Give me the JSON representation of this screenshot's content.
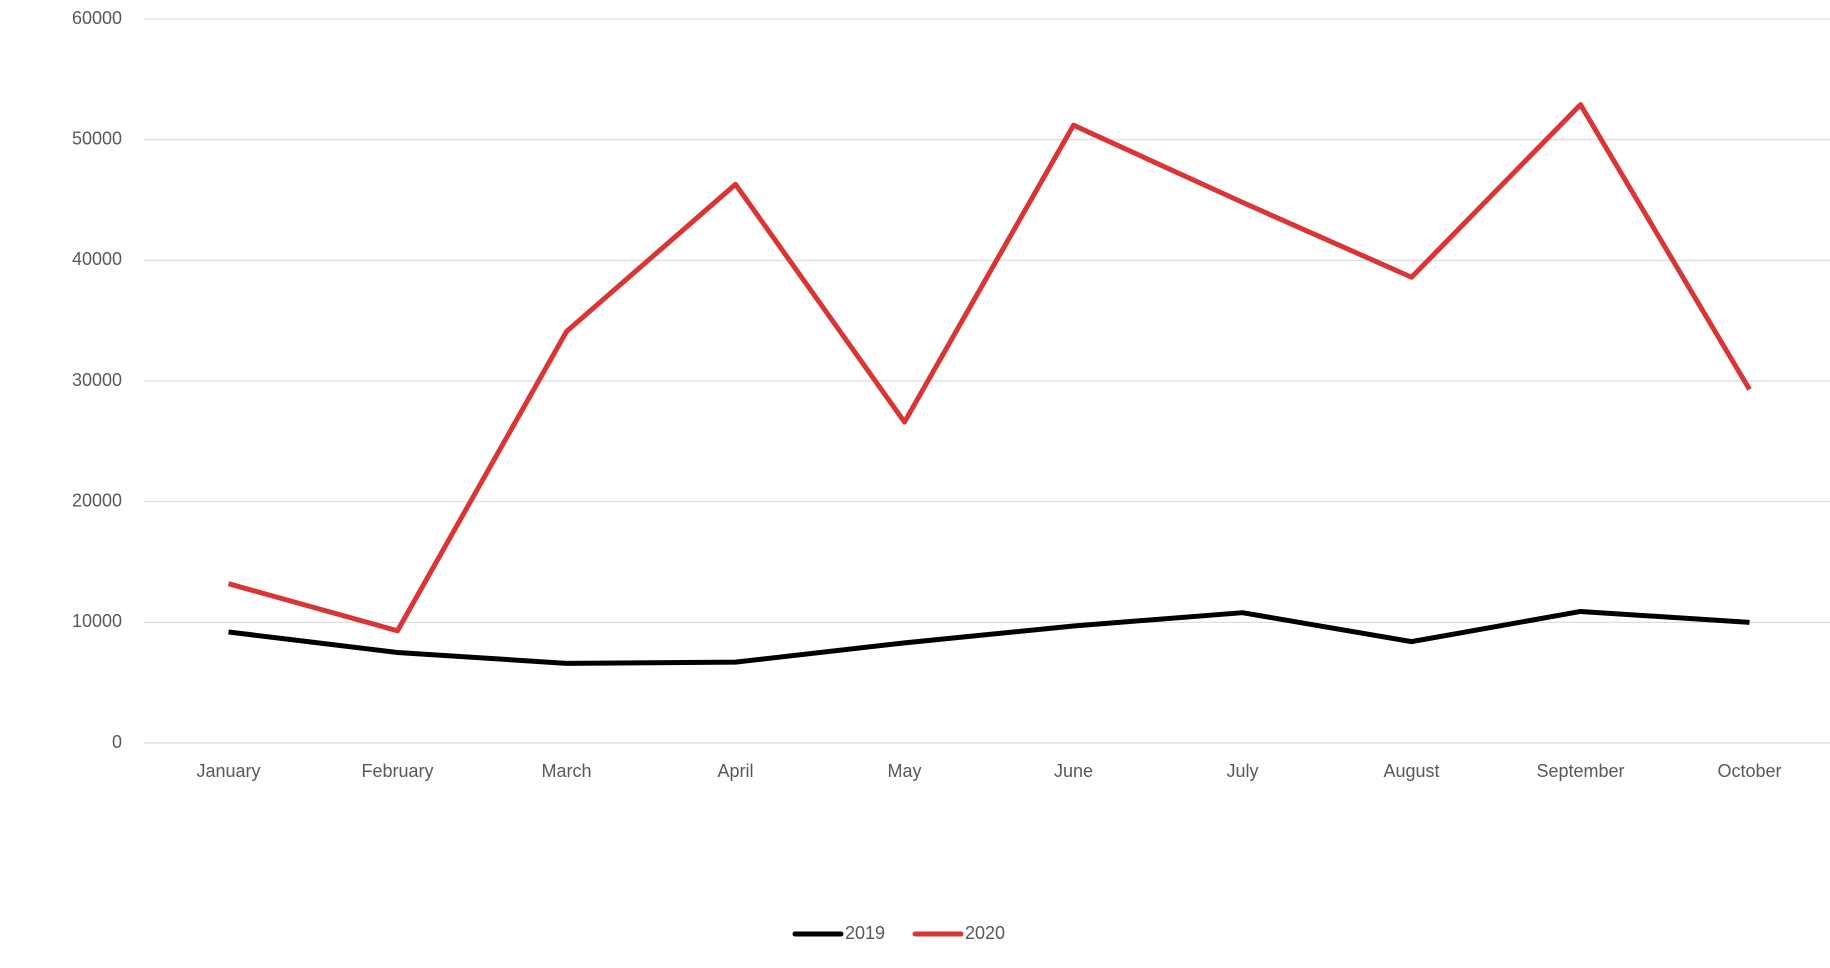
{
  "chart_data": {
    "type": "line",
    "categories": [
      "January",
      "February",
      "March",
      "April",
      "May",
      "June",
      "July",
      "August",
      "September",
      "October"
    ],
    "series": [
      {
        "name": "2019",
        "color": "#000000",
        "values": [
          9200,
          7500,
          6600,
          6700,
          8300,
          9700,
          10800,
          8400,
          10900,
          10000
        ]
      },
      {
        "name": "2020",
        "color": "#d93535",
        "values": [
          13200,
          9300,
          34100,
          46300,
          26600,
          51200,
          44800,
          38600,
          52900,
          29300
        ]
      }
    ],
    "ylim": [
      0,
      60000
    ],
    "yticks": [
      0,
      10000,
      20000,
      30000,
      40000,
      50000,
      60000
    ],
    "grid": true,
    "legend": "bottom"
  }
}
